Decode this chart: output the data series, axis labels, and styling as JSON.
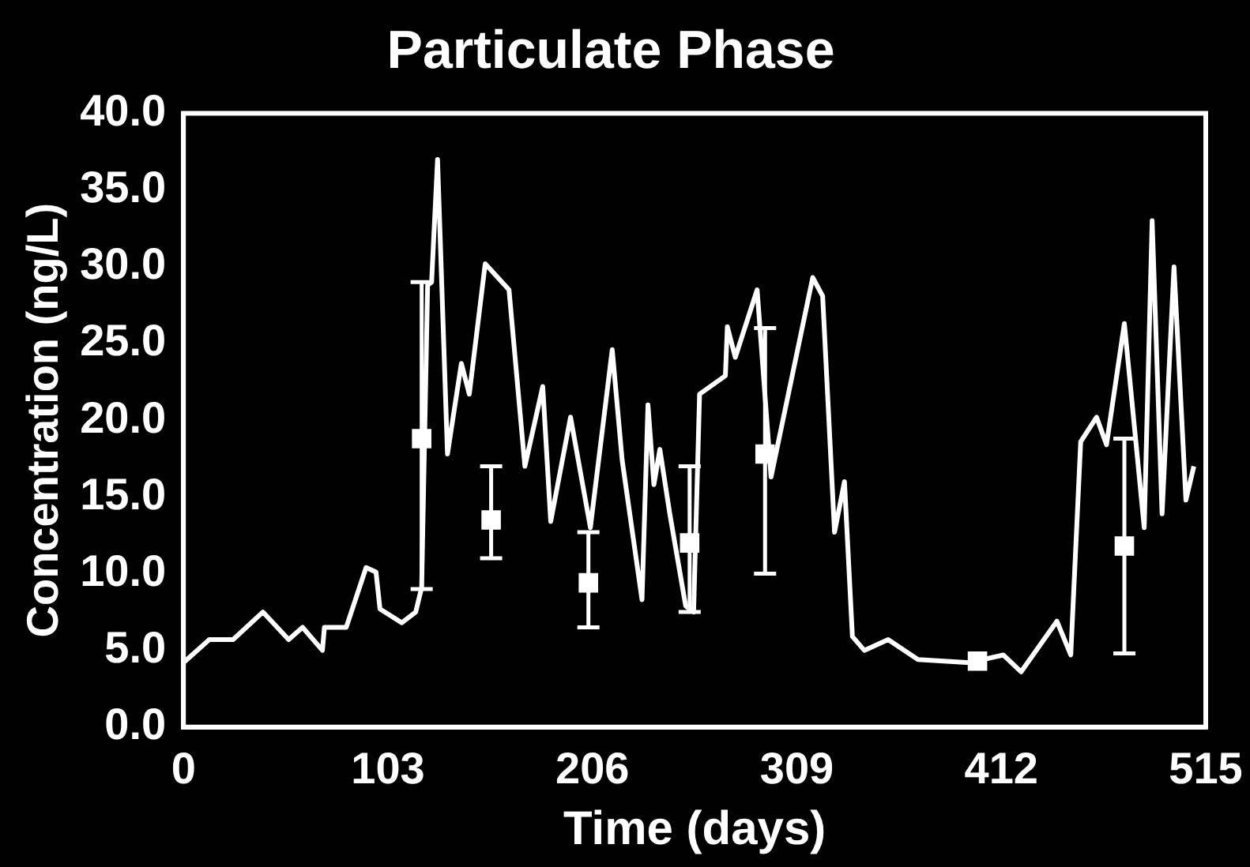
{
  "chart_data": {
    "type": "line",
    "title": "Particulate Phase",
    "xlabel": "Time (days)",
    "ylabel": "Concentration (ng/L)",
    "xlim": [
      0,
      515
    ],
    "xticks": [
      0,
      103,
      206,
      309,
      412,
      515
    ],
    "ylim": [
      0,
      40
    ],
    "yticks": [
      {
        "value": 0,
        "label": "0.0"
      },
      {
        "value": 5,
        "label": "5.0"
      },
      {
        "value": 10,
        "label": "10.0"
      },
      {
        "value": 15,
        "label": "15.0"
      },
      {
        "value": 20,
        "label": "20.0"
      },
      {
        "value": 25,
        "label": "25.0"
      },
      {
        "value": 30,
        "label": "30.0"
      },
      {
        "value": 35,
        "label": "35.0"
      },
      {
        "value": 40,
        "label": "40.0"
      }
    ],
    "grid": false,
    "legend": false,
    "series": [
      {
        "color": "#ffffff",
        "marker": "none",
        "x": [
          0,
          13,
          25,
          40,
          53,
          60,
          70,
          71,
          82,
          92,
          97,
          99,
          110,
          117,
          120,
          123,
          125,
          128,
          133,
          140,
          144,
          152,
          164,
          172,
          181,
          185,
          195,
          205,
          216,
          221,
          231,
          234,
          237,
          240,
          245,
          253,
          257,
          260,
          273,
          274,
          278,
          289,
          296,
          317,
          322,
          328,
          333,
          337,
          343,
          355,
          370,
          396,
          413,
          422,
          440,
          447,
          452,
          460,
          465,
          474,
          484,
          488,
          493,
          499,
          505,
          509
        ],
        "values": [
          4.2,
          5.7,
          5.7,
          7.5,
          5.7,
          6.5,
          5.0,
          6.5,
          6.5,
          10.4,
          10.1,
          7.7,
          6.8,
          7.5,
          9.1,
          28.8,
          29,
          37.0,
          17.8,
          23.7,
          21.7,
          30.2,
          28.5,
          17.0,
          22.2,
          13.4,
          20.2,
          13.0,
          24.6,
          17.4,
          8.3,
          21.0,
          15.8,
          18.1,
          13.9,
          7.9,
          7.5,
          21.7,
          22.9,
          26.1,
          24.1,
          28.5,
          16.3,
          29.3,
          28.1,
          12.7,
          16.0,
          5.9,
          5.0,
          5.7,
          4.4,
          4.2,
          4.7,
          3.6,
          6.9,
          4.7,
          18.6,
          20.2,
          18.4,
          26.3,
          13.0,
          33.0,
          13.9,
          30.0,
          14.8,
          17.0
        ]
      },
      {
        "type": "scatter",
        "color": "#ffffff",
        "marker": "square",
        "x": [
          120,
          155,
          204,
          255,
          293,
          400,
          474
        ],
        "values": [
          18.8,
          13.5,
          9.4,
          12.0,
          17.8,
          4.3,
          11.8
        ],
        "errors": [
          [
            9,
            29
          ],
          [
            11,
            17
          ],
          [
            6.5,
            12.7
          ],
          [
            7.5,
            17
          ],
          [
            10,
            26
          ],
          null,
          [
            4.8,
            18.8
          ]
        ]
      }
    ]
  }
}
